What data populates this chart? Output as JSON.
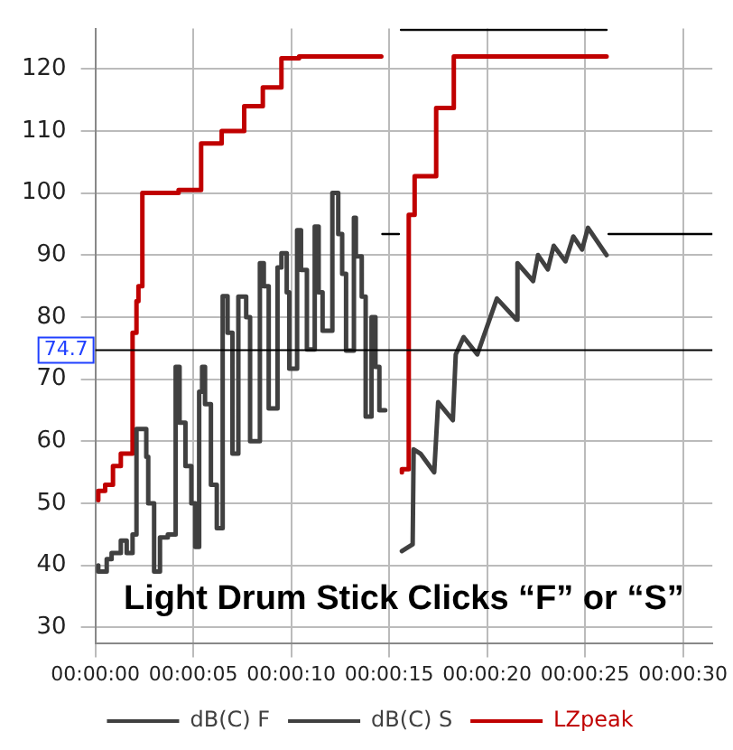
{
  "chart_data": {
    "type": "line",
    "xlim": [
      0,
      31.5
    ],
    "ylim": [
      27.5,
      126.5
    ],
    "xticks": [
      {
        "value": 0,
        "label": "00:00:00"
      },
      {
        "value": 5,
        "label": "00:00:05"
      },
      {
        "value": 10,
        "label": "00:00:10"
      },
      {
        "value": 15,
        "label": "00:00:15"
      },
      {
        "value": 20,
        "label": "00:00:20"
      },
      {
        "value": 25,
        "label": "00:00:25"
      },
      {
        "value": 30,
        "label": "00:00:30"
      }
    ],
    "yticks": [
      30,
      40,
      50,
      60,
      70,
      80,
      90,
      100,
      110,
      120
    ],
    "grid": true,
    "legend": "bottom",
    "annotations": [
      "Light Drum Stick Clicks “F” or “S”"
    ],
    "ref_lines": [
      {
        "axis": "y",
        "value": 74.7,
        "label": "74.7",
        "color": "#000000"
      }
    ],
    "series": [
      {
        "name": "dB(C) F",
        "type": "step",
        "color": "#404040",
        "x": [
          0.15,
          0.58,
          0.83,
          1.3,
          1.6,
          1.9,
          2.1,
          2.3,
          2.6,
          2.7,
          3.0,
          3.3,
          3.7,
          4.1,
          4.3,
          4.6,
          4.9,
          5.1,
          5.3,
          5.45,
          5.6,
          5.9,
          6.2,
          6.5,
          6.75,
          7.0,
          7.3,
          7.7,
          7.9,
          8.4,
          8.6,
          8.85,
          9.3,
          9.5,
          9.77,
          9.9,
          10.3,
          10.5,
          10.8,
          11.2,
          11.4,
          11.6,
          12.1,
          12.4,
          12.6,
          12.8,
          13.2,
          13.3,
          13.6,
          13.8,
          14.1,
          14.3,
          14.5,
          14.6,
          14.8
        ],
        "values": [
          40,
          39,
          41,
          42,
          44,
          42,
          45,
          62,
          62,
          57.5,
          50,
          39,
          44.5,
          45,
          72,
          63,
          56,
          50,
          43,
          68,
          72,
          66,
          53,
          46,
          83.4,
          77.5,
          58,
          83.3,
          80,
          60,
          88.7,
          85,
          65.3,
          88,
          90.3,
          84,
          71.7,
          94,
          87.6,
          74.8,
          94.6,
          84,
          77.8,
          100,
          93.4,
          87,
          74.6,
          96,
          89.8,
          83.3,
          64,
          80,
          72,
          65,
          65
        ]
      },
      {
        "name": "dB(C) S",
        "type": "line",
        "color": "#404040",
        "x": [
          15.65,
          16.2,
          16.25,
          16.6,
          17.3,
          17.5,
          18.25,
          18.4,
          18.8,
          19.5,
          20.5,
          21.5,
          21.55,
          22.35,
          22.6,
          23.1,
          23.4,
          24.0,
          24.4,
          24.85,
          25.15,
          26.1
        ],
        "values": [
          42.3,
          43.4,
          58.7,
          58,
          55,
          66.3,
          63.4,
          74,
          76.8,
          74,
          83,
          79.6,
          88.7,
          85.8,
          90,
          87.7,
          91.5,
          89,
          93,
          90.9,
          94.4,
          90
        ]
      },
      {
        "name": "LZpeak",
        "type": "step",
        "color": "#c00000",
        "x": [
          0.15,
          0.5,
          0.9,
          1.3,
          1.9,
          2.1,
          2.2,
          2.4,
          4.25,
          5.4,
          6.45,
          7.6,
          8.55,
          9.5,
          10.4,
          12.1,
          14.6,
          15.0,
          15.65,
          16.0,
          16.3,
          17.4,
          18.3,
          20.4,
          26.1
        ],
        "values": [
          50.5,
          52,
          53,
          56,
          58,
          77.5,
          82.6,
          85,
          100,
          100.5,
          108,
          110,
          114,
          117,
          121.7,
          122,
          122,
          null,
          55,
          55.5,
          96.5,
          102.7,
          113.7,
          122,
          122
        ]
      },
      {
        "type": "line",
        "color": "#000000",
        "x": [
          14.65,
          15.5,
          15.55,
          15.6,
          26.1,
          26.15,
          26.2,
          31.5
        ],
        "values": [
          93.4,
          93.4,
          null,
          126.3,
          126.3,
          null,
          93.4,
          93.4
        ]
      }
    ]
  }
}
